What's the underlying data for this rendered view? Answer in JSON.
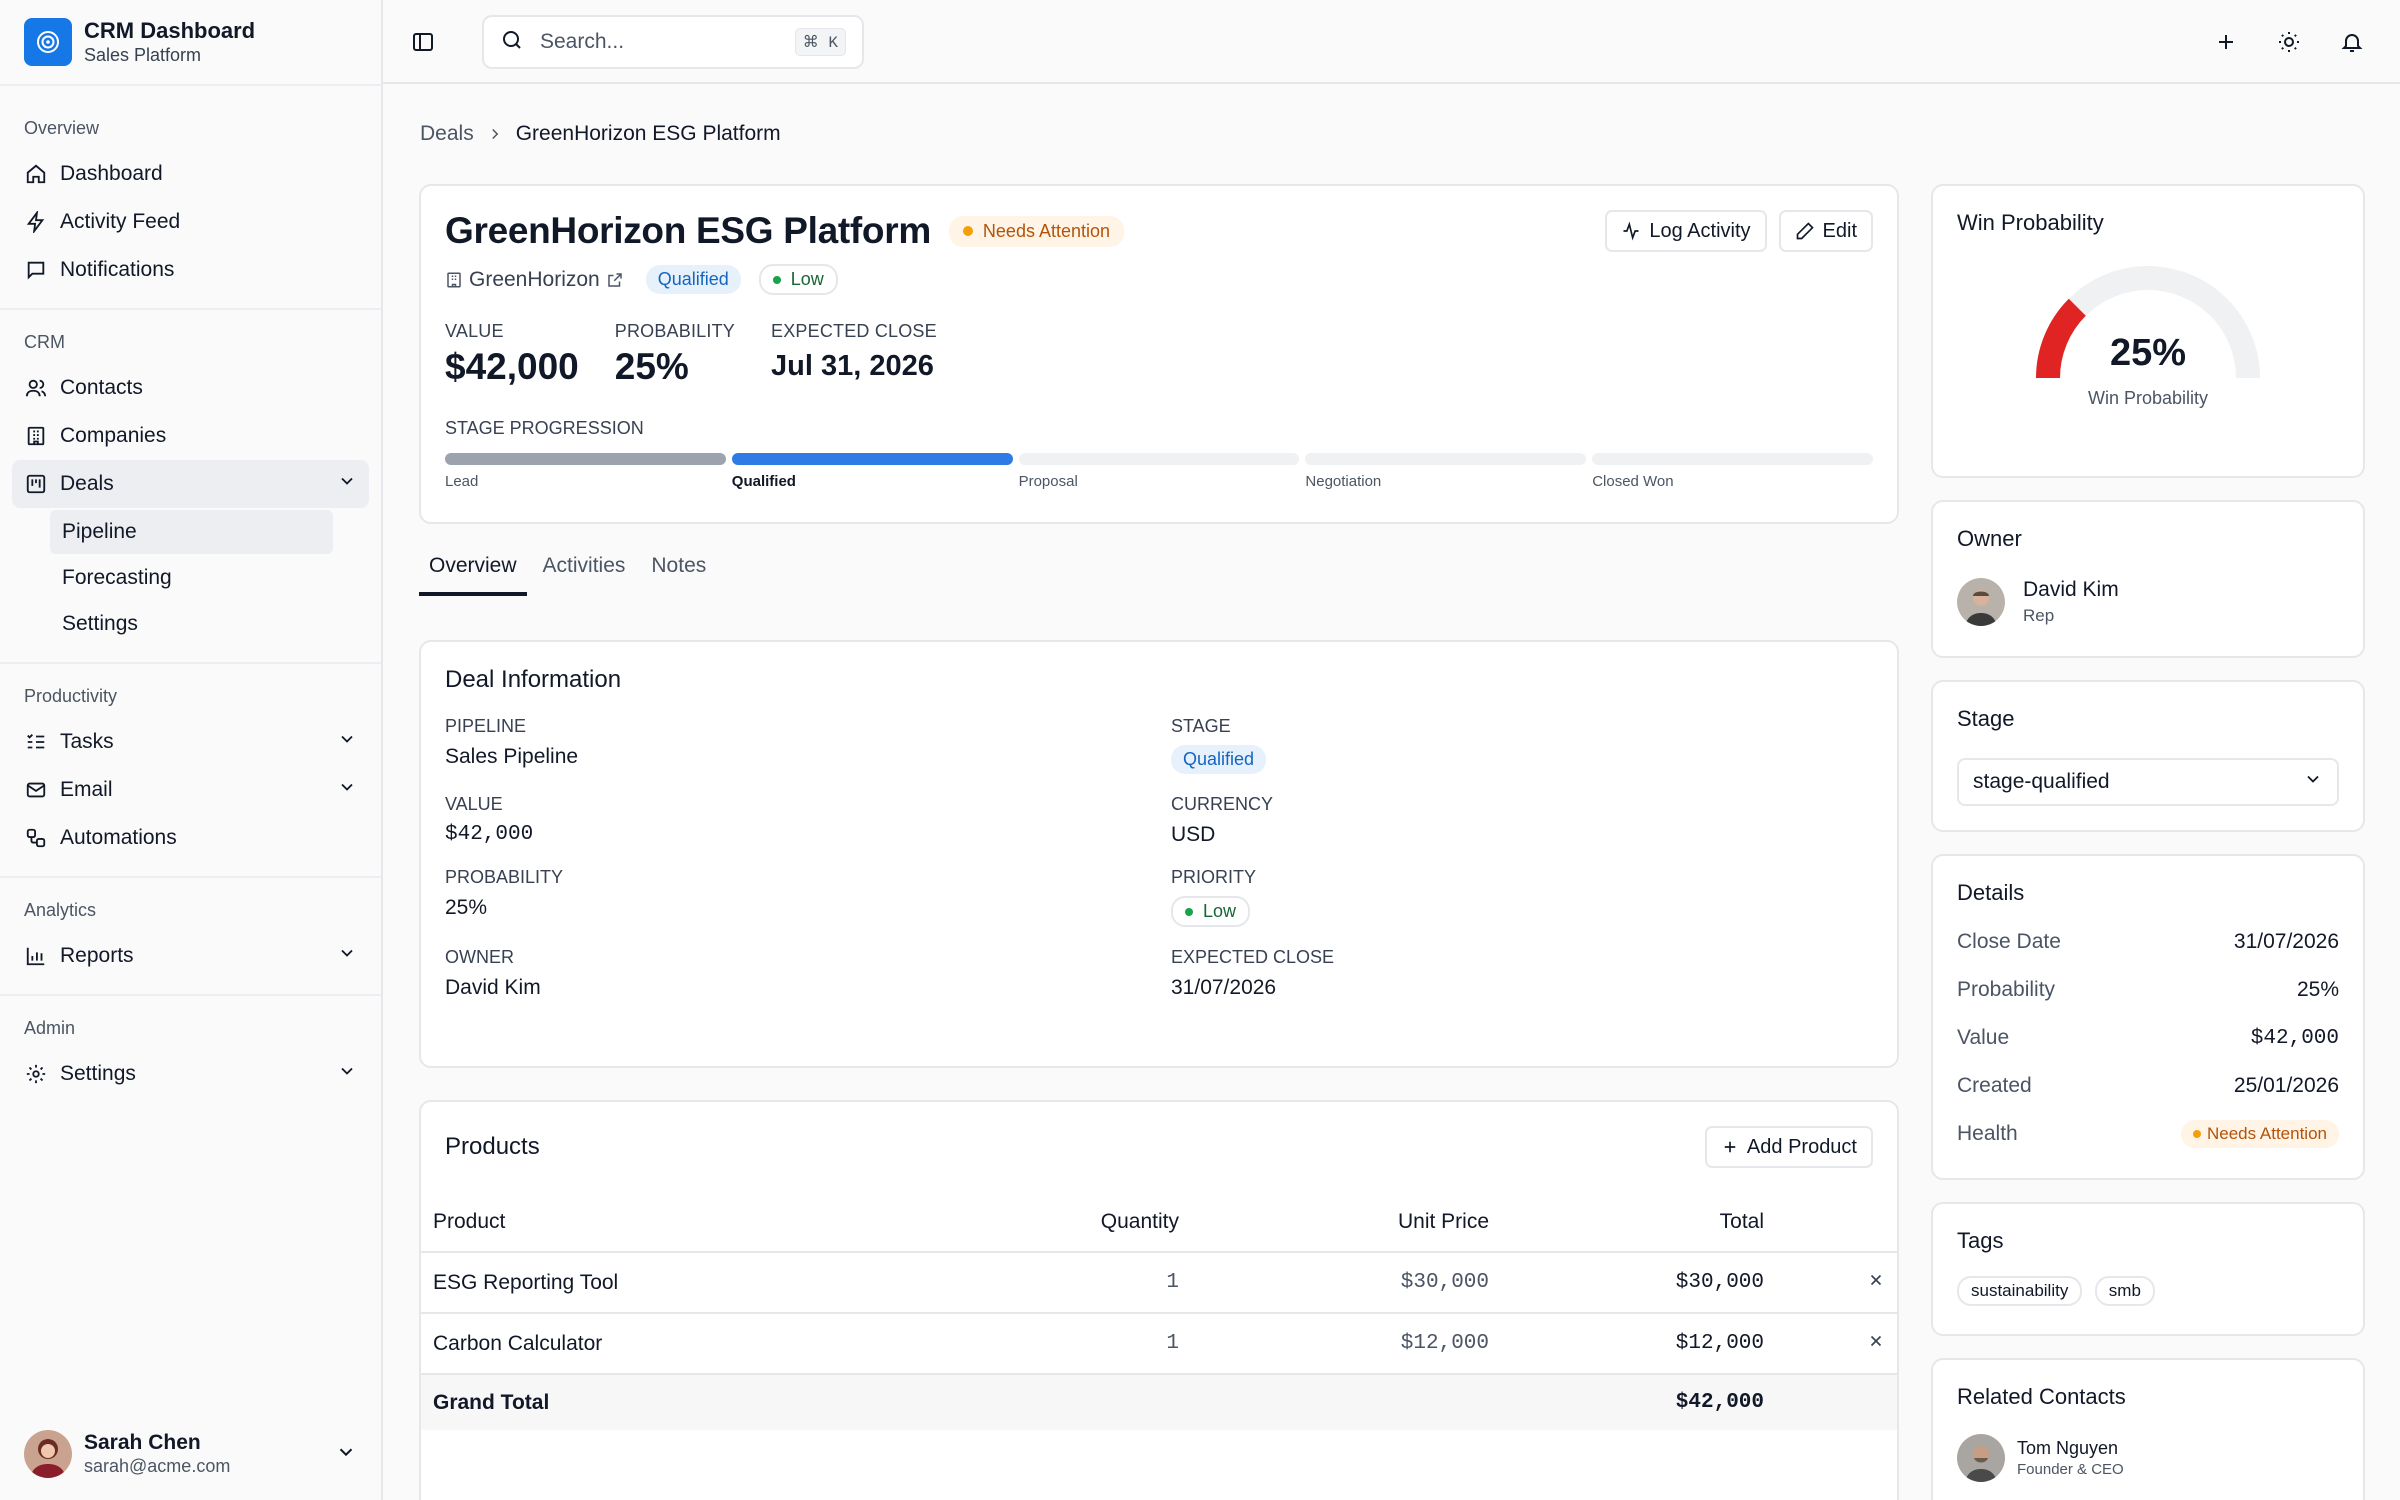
{
  "brand": {
    "title": "CRM Dashboard",
    "subtitle": "Sales Platform"
  },
  "sidebar": {
    "groups": [
      {
        "label": "Overview",
        "items": [
          {
            "label": "Dashboard"
          },
          {
            "label": "Activity Feed"
          },
          {
            "label": "Notifications"
          }
        ]
      },
      {
        "label": "CRM",
        "items": [
          {
            "label": "Contacts"
          },
          {
            "label": "Companies"
          },
          {
            "label": "Deals"
          }
        ],
        "deals_sub": [
          "Pipeline",
          "Forecasting",
          "Settings"
        ]
      },
      {
        "label": "Productivity",
        "items": [
          {
            "label": "Tasks"
          },
          {
            "label": "Email"
          },
          {
            "label": "Automations"
          }
        ]
      },
      {
        "label": "Analytics",
        "items": [
          {
            "label": "Reports"
          }
        ]
      },
      {
        "label": "Admin",
        "items": [
          {
            "label": "Settings"
          }
        ]
      }
    ],
    "user": {
      "name": "Sarah Chen",
      "email": "sarah@acme.com"
    }
  },
  "topbar": {
    "search_placeholder": "Search...",
    "shortcut": "⌘ K"
  },
  "breadcrumb": {
    "parent": "Deals",
    "current": "GreenHorizon ESG Platform"
  },
  "deal": {
    "title": "GreenHorizon ESG Platform",
    "status": "Needs Attention",
    "company": "GreenHorizon",
    "stage_chip": "Qualified",
    "priority_chip": "Low",
    "actions": {
      "log_activity": "Log Activity",
      "edit": "Edit"
    },
    "metrics": [
      {
        "label": "VALUE",
        "value": "$42,000"
      },
      {
        "label": "PROBABILITY",
        "value": "25%"
      },
      {
        "label": "EXPECTED CLOSE",
        "value": "Jul 31, 2026"
      }
    ],
    "stage_progression_label": "STAGE PROGRESSION",
    "stages": [
      "Lead",
      "Qualified",
      "Proposal",
      "Negotiation",
      "Closed Won"
    ],
    "current_stage_index": 1
  },
  "tabs": [
    "Overview",
    "Activities",
    "Notes"
  ],
  "deal_info": {
    "title": "Deal Information",
    "fields": [
      {
        "label": "PIPELINE",
        "value": "Sales Pipeline"
      },
      {
        "label": "STAGE",
        "value": "Qualified"
      },
      {
        "label": "VALUE",
        "value": "$42,000"
      },
      {
        "label": "CURRENCY",
        "value": "USD"
      },
      {
        "label": "PROBABILITY",
        "value": "25%"
      },
      {
        "label": "PRIORITY",
        "value": "Low"
      },
      {
        "label": "OWNER",
        "value": "David Kim"
      },
      {
        "label": "EXPECTED CLOSE",
        "value": "31/07/2026"
      }
    ]
  },
  "products": {
    "title": "Products",
    "add_label": "Add Product",
    "columns": [
      "Product",
      "Quantity",
      "Unit Price",
      "Total"
    ],
    "rows": [
      {
        "product": "ESG Reporting Tool",
        "qty": "1",
        "unit": "$30,000",
        "total": "$30,000"
      },
      {
        "product": "Carbon Calculator",
        "qty": "1",
        "unit": "$12,000",
        "total": "$12,000"
      }
    ],
    "grand_label": "Grand Total",
    "grand_total": "$42,000"
  },
  "win": {
    "title": "Win Probability",
    "value": "25%",
    "caption": "Win Probability",
    "fraction": 0.25,
    "color": "#e02424"
  },
  "owner": {
    "title": "Owner",
    "name": "David Kim",
    "role": "Rep"
  },
  "stage_panel": {
    "title": "Stage",
    "selected": "stage-qualified"
  },
  "details": {
    "title": "Details",
    "rows": [
      {
        "k": "Close Date",
        "v": "31/07/2026"
      },
      {
        "k": "Probability",
        "v": "25%"
      },
      {
        "k": "Value",
        "v": "$42,000"
      },
      {
        "k": "Created",
        "v": "25/01/2026"
      },
      {
        "k": "Health",
        "v": "Needs Attention"
      }
    ]
  },
  "tags": {
    "title": "Tags",
    "items": [
      "sustainability",
      "smb"
    ]
  },
  "related": {
    "title": "Related Contacts",
    "contacts": [
      {
        "name": "Tom Nguyen",
        "role": "Founder & CEO"
      }
    ]
  },
  "colors": {
    "accent": "#2f7be5",
    "brand": "#1677e6",
    "warning": "#f59e0b",
    "success": "#16a34a"
  }
}
